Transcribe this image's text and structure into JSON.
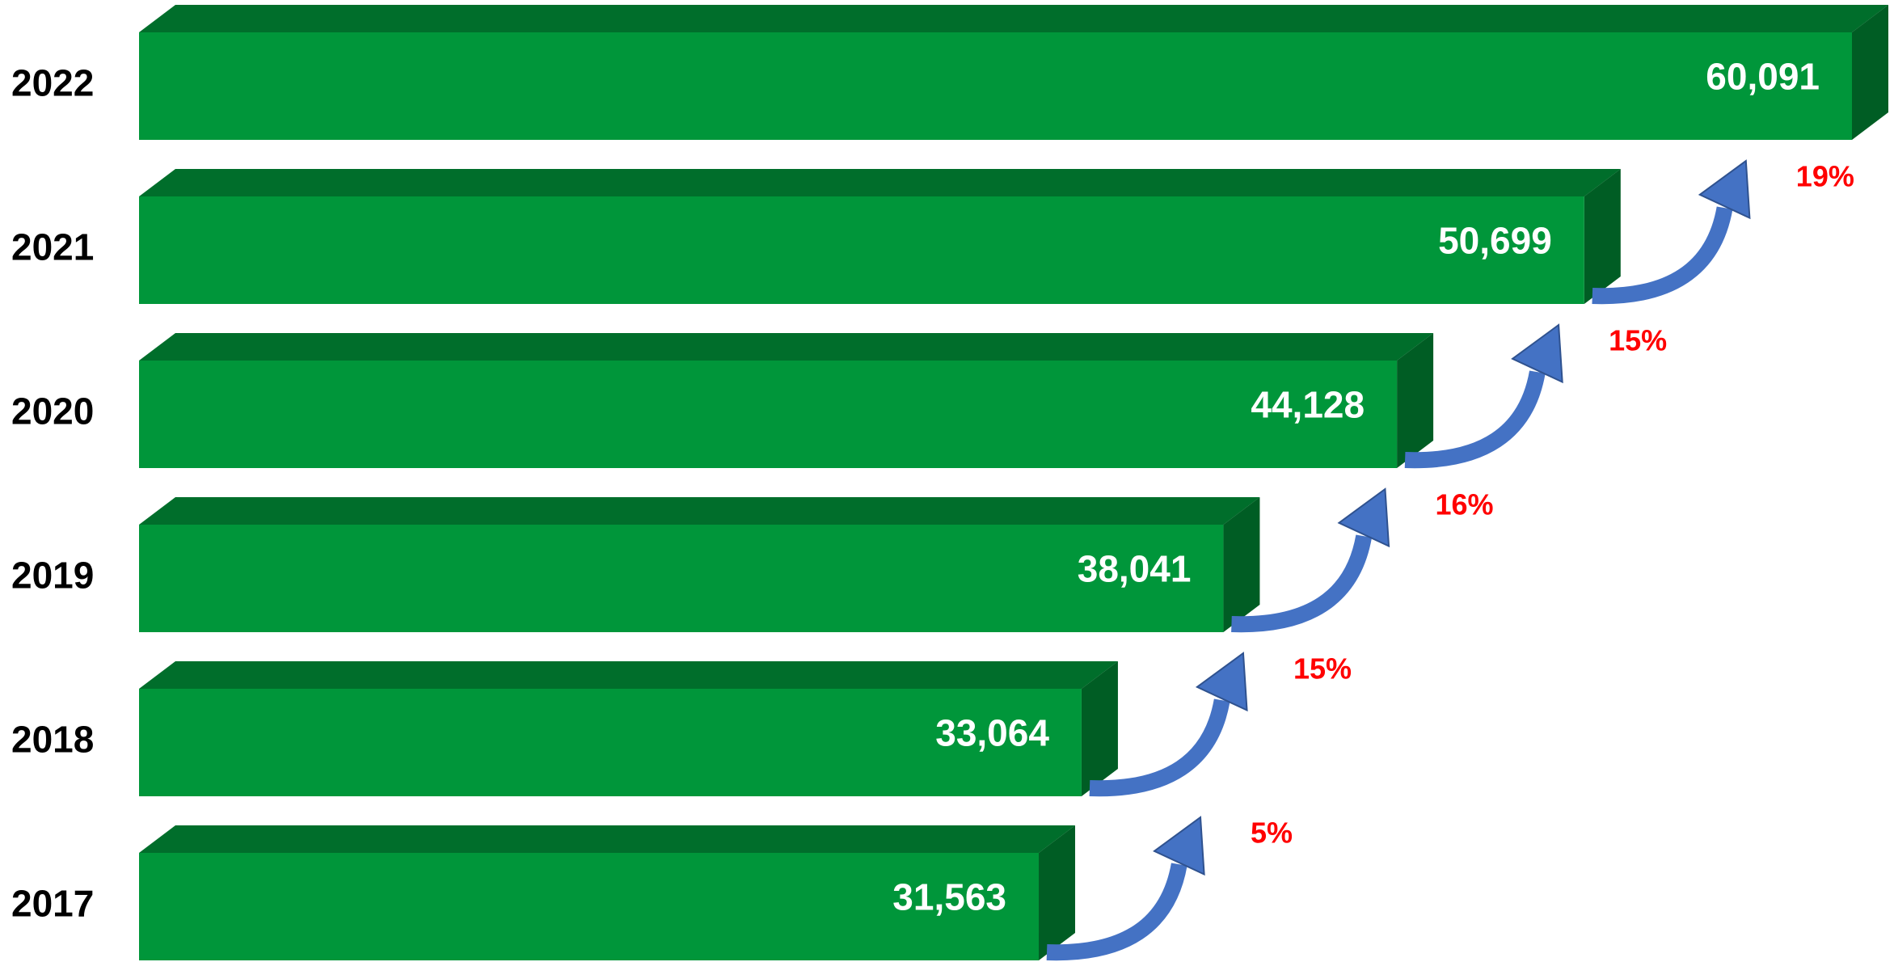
{
  "chart_data": {
    "type": "bar3d_horizontal",
    "categories": [
      "2022",
      "2021",
      "2020",
      "2019",
      "2018",
      "2017"
    ],
    "values": [
      60091,
      50699,
      44128,
      38041,
      33064,
      31563
    ],
    "value_labels": [
      "60,091",
      "50,699",
      "44,128",
      "38,041",
      "33,064",
      "31,563"
    ],
    "color": "#00963a",
    "annotations": [
      {
        "value": 19,
        "label": "19%"
      },
      {
        "value": 15,
        "label": "15%"
      },
      {
        "value": 16,
        "label": "16%"
      },
      {
        "value": 15,
        "label": "15%"
      },
      {
        "value": 5,
        "label": "5%"
      }
    ]
  }
}
